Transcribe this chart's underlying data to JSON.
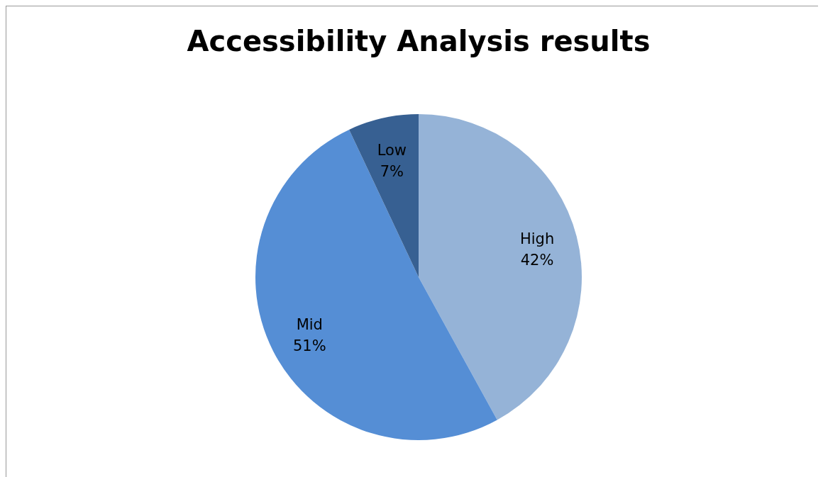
{
  "chart_data": {
    "type": "pie",
    "title": "Accessibility Analysis results",
    "categories": [
      "High",
      "Mid",
      "Low"
    ],
    "values": [
      42,
      51,
      7
    ],
    "value_labels": [
      "42%",
      "51%",
      "7%"
    ],
    "colors": [
      "#95b3d7",
      "#558ed5",
      "#376092"
    ],
    "legend": false
  }
}
